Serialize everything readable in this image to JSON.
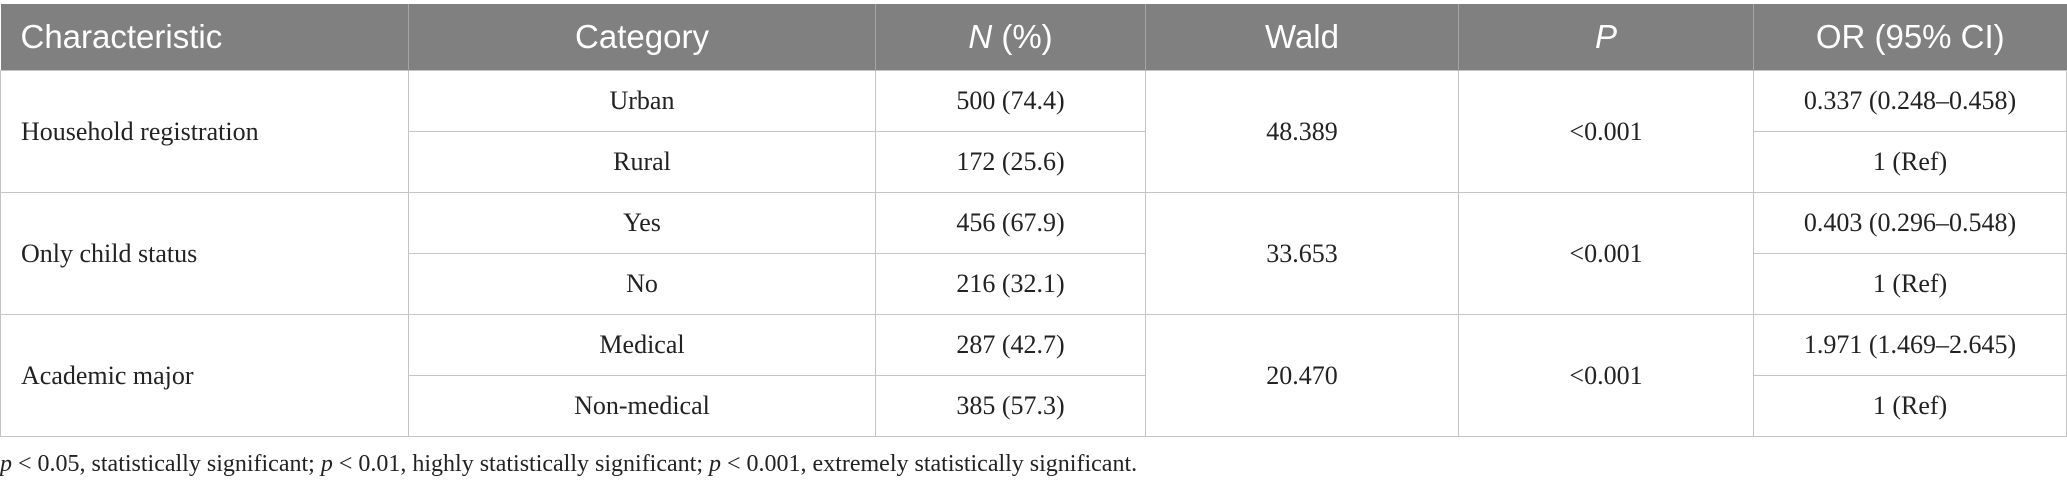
{
  "headers": {
    "characteristic": "Characteristic",
    "category": "Category",
    "n_italic": "N",
    "n_rest": " (%)",
    "wald": "Wald",
    "p": "P",
    "or": "OR (95% CI)"
  },
  "rows": [
    {
      "characteristic": "Household registration",
      "wald": "48.389",
      "p": "<0.001",
      "items": [
        {
          "category": "Urban",
          "n": "500 (74.4)",
          "or": "0.337 (0.248–0.458)"
        },
        {
          "category": "Rural",
          "n": "172 (25.6)",
          "or": "1 (Ref)"
        }
      ]
    },
    {
      "characteristic": "Only child status",
      "wald": "33.653",
      "p": "<0.001",
      "items": [
        {
          "category": "Yes",
          "n": "456 (67.9)",
          "or": "0.403 (0.296–0.548)"
        },
        {
          "category": "No",
          "n": "216 (32.1)",
          "or": "1 (Ref)"
        }
      ]
    },
    {
      "characteristic": "Academic major",
      "wald": "20.470",
      "p": "<0.001",
      "items": [
        {
          "category": "Medical",
          "n": "287 (42.7)",
          "or": "1.971 (1.469–2.645)"
        },
        {
          "category": "Non-medical",
          "n": "385 (57.3)",
          "or": "1 (Ref)"
        }
      ]
    }
  ],
  "footnote": {
    "p_symbol": "p",
    "part1": " < 0.05, statistically significant; ",
    "part2": " < 0.01, highly statistically significant; ",
    "part3": " < 0.001, extremely statistically significant."
  }
}
